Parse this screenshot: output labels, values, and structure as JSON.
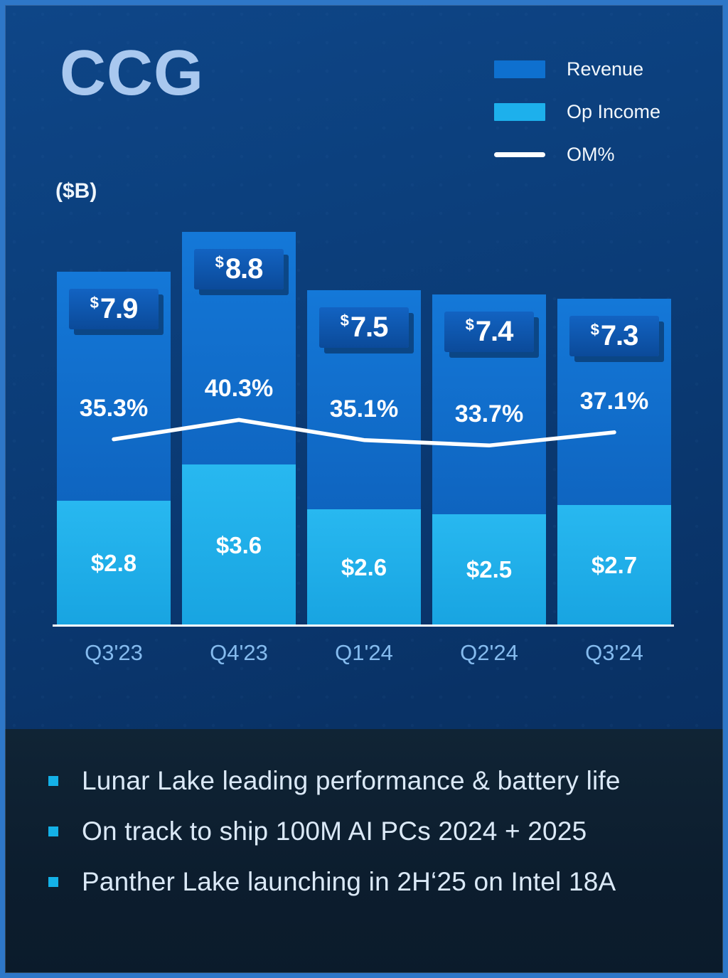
{
  "slide": {
    "title": "CCG",
    "unit_label": "($B)"
  },
  "legend": [
    {
      "label": "Revenue",
      "type": "swatch",
      "color": "#0e70cf"
    },
    {
      "label": "Op Income",
      "type": "swatch",
      "color": "#1db0ec"
    },
    {
      "label": "OM%",
      "type": "line",
      "color": "#ffffff"
    }
  ],
  "chart_data": {
    "type": "bar",
    "title": "CCG",
    "ylabel": "($B)",
    "categories": [
      "Q3'23",
      "Q4'23",
      "Q1'24",
      "Q2'24",
      "Q3'24"
    ],
    "series": [
      {
        "name": "Revenue",
        "type": "bar",
        "unit": "$B",
        "color": "#0e70cf",
        "values": [
          7.9,
          8.8,
          7.5,
          7.4,
          7.3
        ],
        "labels": [
          "$7.9",
          "$8.8",
          "$7.5",
          "$7.4",
          "$7.3"
        ]
      },
      {
        "name": "Op Income",
        "type": "bar",
        "unit": "$B",
        "color": "#1db0ec",
        "values": [
          2.8,
          3.6,
          2.6,
          2.5,
          2.7
        ],
        "labels": [
          "$2.8",
          "$3.6",
          "$2.6",
          "$2.5",
          "$2.7"
        ]
      },
      {
        "name": "OM%",
        "type": "line",
        "unit": "%",
        "color": "#ffffff",
        "values": [
          35.3,
          40.3,
          35.1,
          33.7,
          37.1
        ],
        "labels": [
          "35.3%",
          "40.3%",
          "35.1%",
          "33.7%",
          "37.1%"
        ]
      }
    ],
    "legend_position": "top-right",
    "grid": false
  },
  "bullets": [
    "Lunar Lake leading performance & battery life",
    "On track to ship 100M AI PCs 2024 + 2025",
    "Panther Lake launching in 2H‘25 on Intel 18A"
  ]
}
